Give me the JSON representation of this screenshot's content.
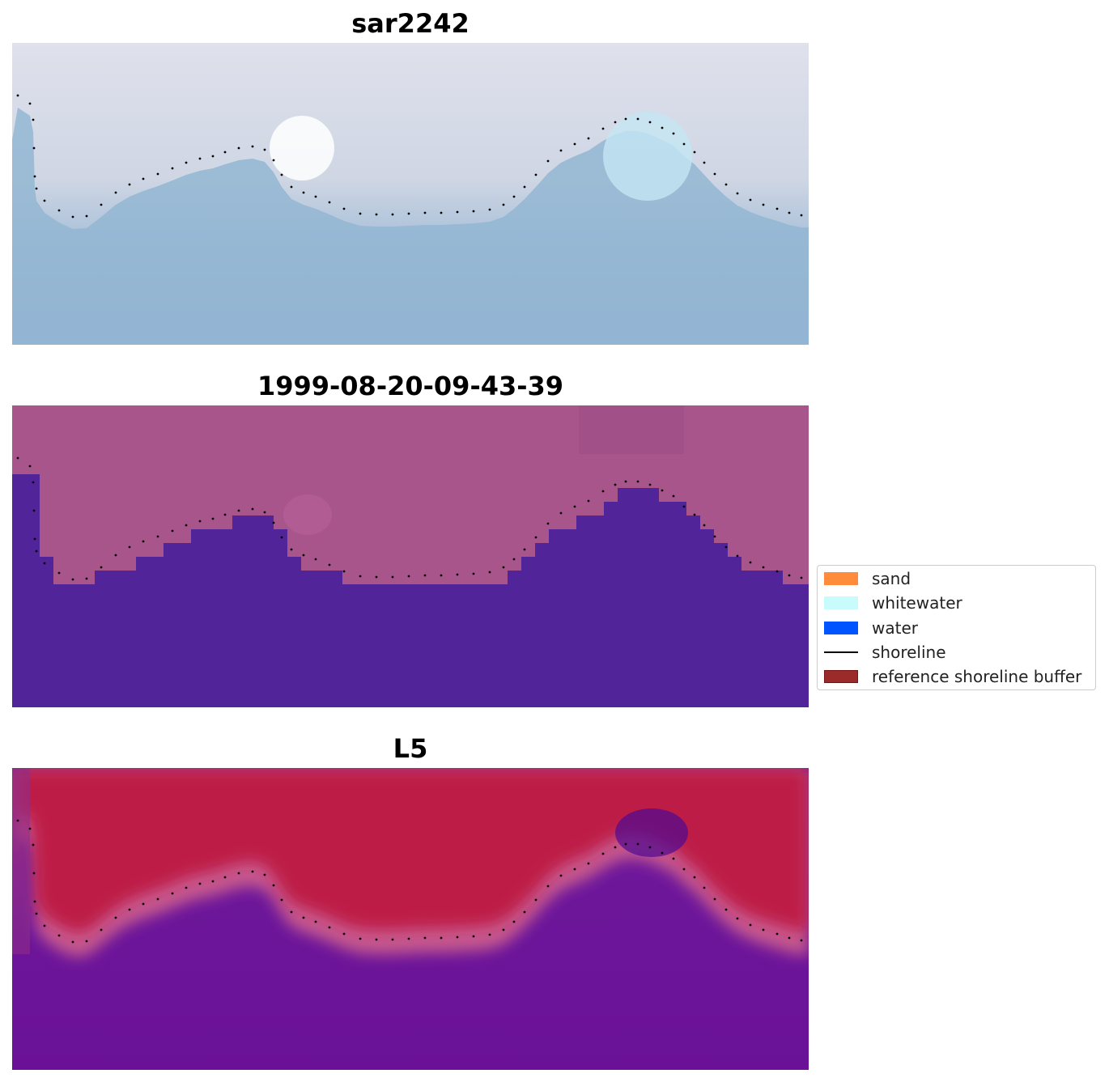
{
  "panels": [
    {
      "title": "sar2242",
      "kind": "rgb"
    },
    {
      "title": "1999-08-20-09-43-39",
      "kind": "classified"
    },
    {
      "title": "L5",
      "kind": "index"
    }
  ],
  "legend": {
    "items": [
      {
        "label": "sand",
        "color": "#ff8c3a",
        "type": "patch"
      },
      {
        "label": "whitewater",
        "color": "#c8fbfb",
        "type": "patch"
      },
      {
        "label": "water",
        "color": "#0054ff",
        "type": "patch"
      },
      {
        "label": "shoreline",
        "color": "#000000",
        "type": "line"
      },
      {
        "label": "reference shoreline buffer",
        "color": "#9b2a2a",
        "type": "patch"
      }
    ]
  },
  "colors": {
    "rgb_land": "#d8dae6",
    "rgb_water": "#8fb0cf",
    "classified_land": "#a8548c",
    "classified_water": "#51249a",
    "index_land": "#bd1a44",
    "index_water": "#6a139a",
    "shoreline_dots": "#000000"
  }
}
